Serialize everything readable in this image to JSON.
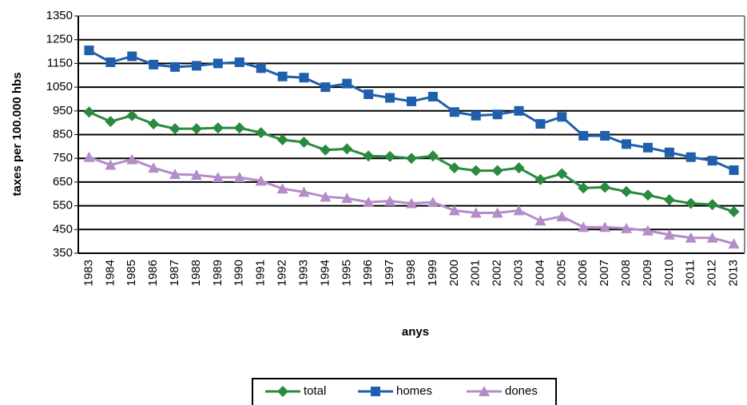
{
  "chart_data": {
    "type": "line",
    "y_label": "taxes per 100.000 hbs",
    "x_label": "anys",
    "categories": [
      "1983",
      "1984",
      "1985",
      "1986",
      "1987",
      "1988",
      "1989",
      "1990",
      "1991",
      "1992",
      "1993",
      "1994",
      "1995",
      "1996",
      "1997",
      "1998",
      "1999",
      "2000",
      "2001",
      "2002",
      "2003",
      "2004",
      "2005",
      "2006",
      "2007",
      "2008",
      "2009",
      "2010",
      "2011",
      "2012",
      "2013"
    ],
    "series": [
      {
        "name": "total",
        "color": "#2a8a3f",
        "marker": "diamond",
        "values": [
          945,
          905,
          930,
          895,
          875,
          875,
          878,
          878,
          858,
          828,
          818,
          785,
          790,
          760,
          758,
          750,
          760,
          710,
          698,
          698,
          710,
          660,
          685,
          625,
          628,
          610,
          595,
          575,
          560,
          555,
          525
        ]
      },
      {
        "name": "homes",
        "color": "#1f5fac",
        "marker": "square",
        "values": [
          1205,
          1155,
          1180,
          1145,
          1135,
          1140,
          1150,
          1155,
          1130,
          1095,
          1090,
          1050,
          1065,
          1020,
          1005,
          990,
          1010,
          945,
          930,
          935,
          950,
          895,
          925,
          845,
          845,
          810,
          795,
          775,
          755,
          740,
          700
        ]
      },
      {
        "name": "dones",
        "color": "#b48cc8",
        "marker": "triangle",
        "values": [
          755,
          722,
          745,
          710,
          683,
          680,
          670,
          670,
          655,
          622,
          608,
          588,
          582,
          565,
          570,
          560,
          565,
          530,
          520,
          520,
          530,
          487,
          505,
          460,
          460,
          455,
          445,
          428,
          415,
          415,
          390
        ]
      }
    ],
    "ylim": [
      350,
      1350
    ],
    "yticks": [
      350,
      450,
      550,
      650,
      750,
      850,
      950,
      1050,
      1150,
      1250,
      1350
    ],
    "grid": true,
    "legend": "bottom"
  }
}
